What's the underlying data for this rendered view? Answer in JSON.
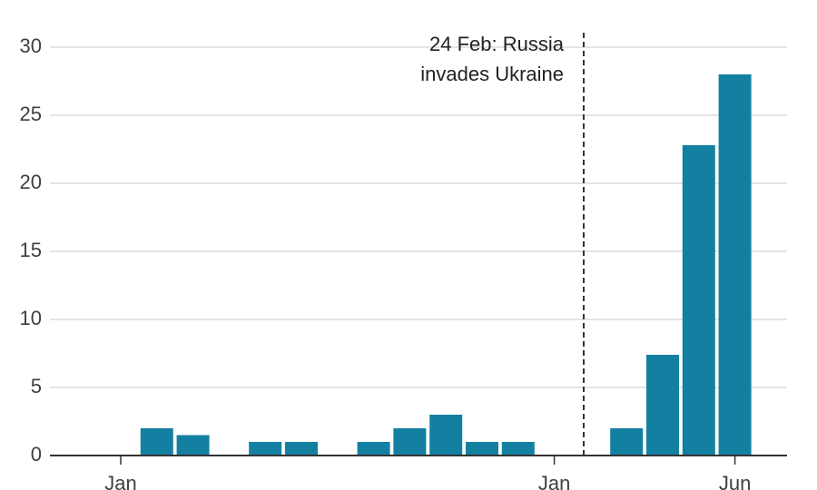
{
  "chart_data": {
    "type": "bar",
    "categories": [
      "Jan",
      null,
      null,
      null,
      null,
      null,
      null,
      null,
      null,
      null,
      null,
      null,
      "Jan",
      null,
      null,
      null,
      null,
      "Jun"
    ],
    "values": [
      0,
      2,
      1.5,
      0,
      1,
      1,
      0,
      1,
      2,
      3,
      1,
      1,
      0,
      0,
      2,
      7.4,
      22.8,
      28
    ],
    "color": "#1380a1",
    "ylim": [
      0,
      30
    ],
    "yticks": [
      0,
      5,
      10,
      15,
      20,
      25,
      30
    ],
    "grid": true,
    "annotation": [
      "24 Feb: Russia",
      "invades Ukraine"
    ]
  }
}
